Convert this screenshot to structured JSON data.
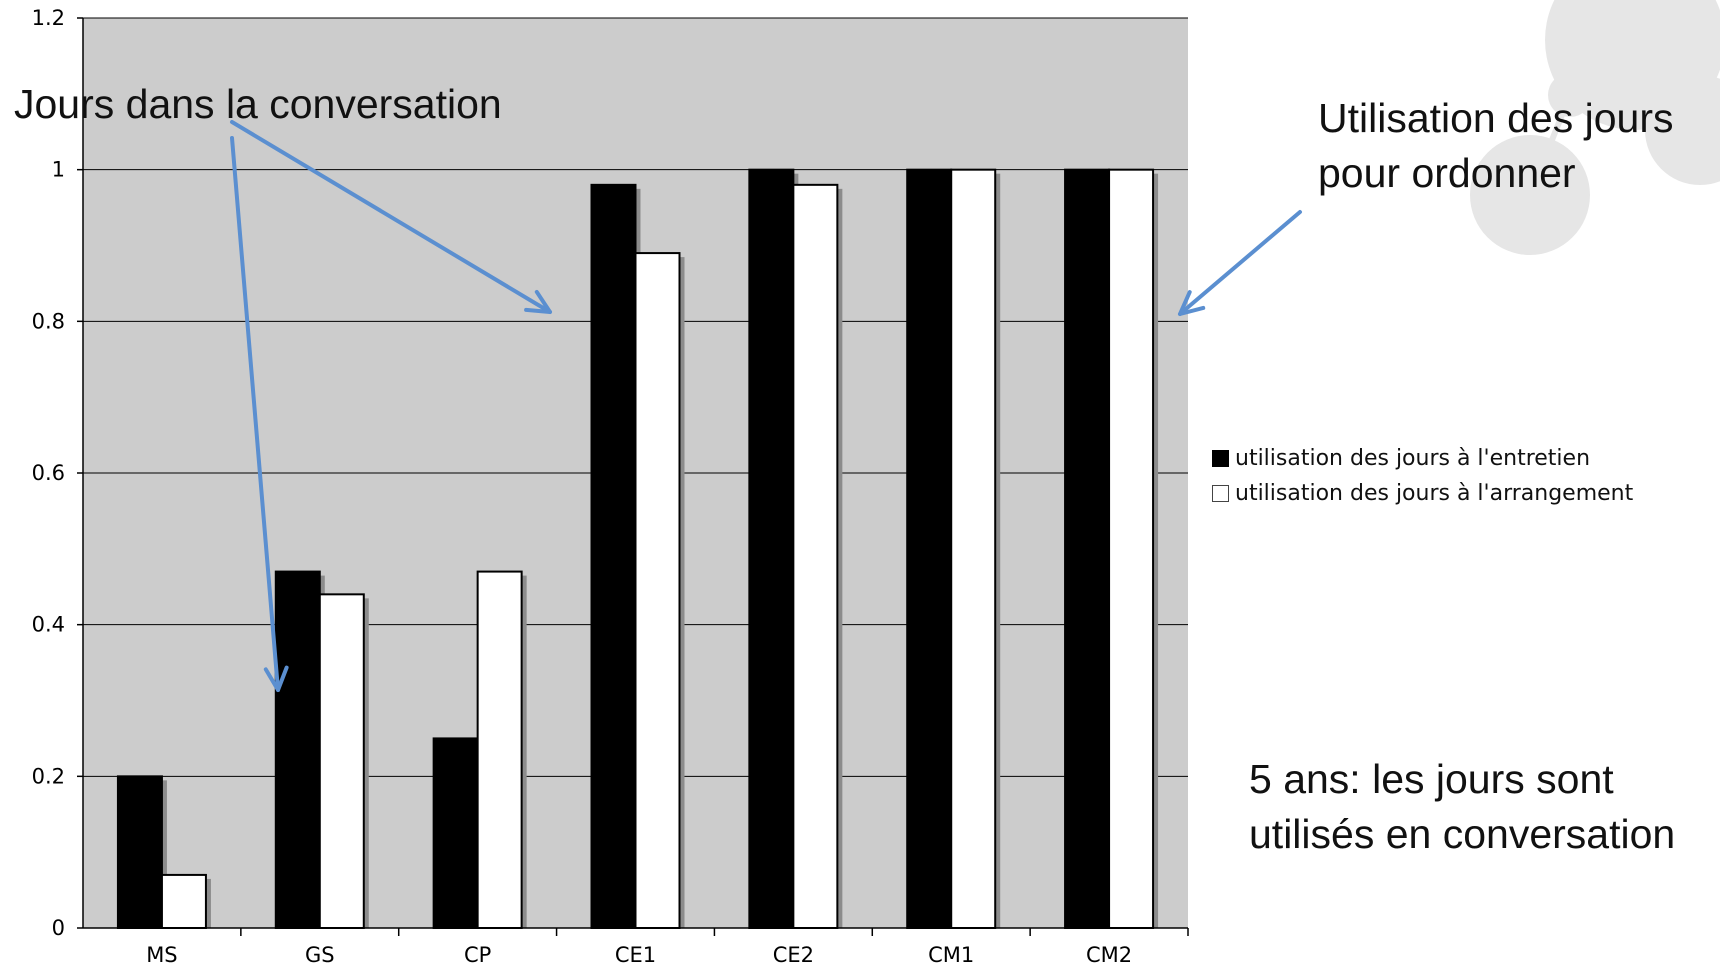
{
  "chart_data": {
    "type": "bar",
    "categories": [
      "MS",
      "GS",
      "CP",
      "CE1",
      "CE2",
      "CM1",
      "CM2"
    ],
    "series": [
      {
        "name": "utilisation des jours à l'entretien",
        "values": [
          0.2,
          0.47,
          0.25,
          0.98,
          1.0,
          1.0,
          1.0
        ],
        "color": "#000000"
      },
      {
        "name": "utilisation des jours à l'arrangement",
        "values": [
          0.07,
          0.44,
          0.47,
          0.89,
          0.98,
          1.0,
          1.0
        ],
        "color": "#ffffff"
      }
    ],
    "yticks": [
      "0",
      "0.2",
      "0.4",
      "0.6",
      "0.8",
      "1",
      "1.2"
    ],
    "ylim": [
      0,
      1.2
    ],
    "grid": true,
    "plot_background": "#cccccc",
    "legend_placement": "right",
    "annotations": {
      "left": "Jours dans la conversation",
      "right_line1": "Utilisation des jours",
      "right_line2": "pour ordonner",
      "bottom_line1": "5 ans: les jours sont",
      "bottom_line2": "utilisés en conversation"
    },
    "arrow_color": "#5b8fd0"
  }
}
